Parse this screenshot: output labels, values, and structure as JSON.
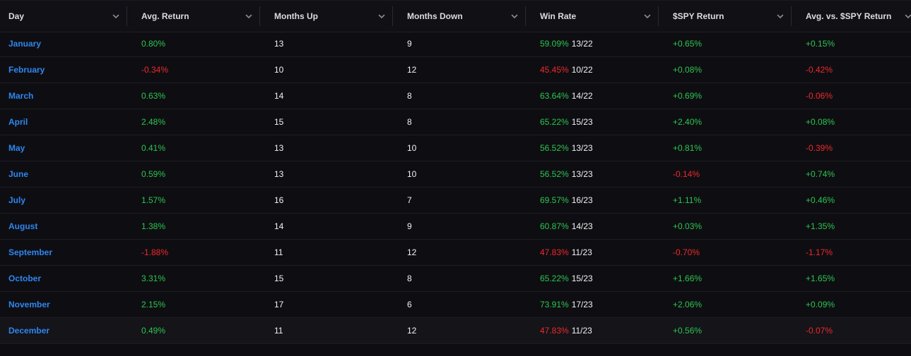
{
  "columns": [
    {
      "key": "day",
      "label": "Day"
    },
    {
      "key": "avg_return",
      "label": "Avg. Return"
    },
    {
      "key": "months_up",
      "label": "Months Up"
    },
    {
      "key": "months_down",
      "label": "Months Down"
    },
    {
      "key": "win_rate",
      "label": "Win Rate"
    },
    {
      "key": "spy_return",
      "label": "$SPY Return"
    },
    {
      "key": "avg_vs_spy",
      "label": "Avg. vs. $SPY Return"
    }
  ],
  "rows": [
    {
      "day": "January",
      "avg_return": "0.80%",
      "avg_return_sign": "pos",
      "months_up": "13",
      "months_down": "9",
      "win_rate": "59.09%",
      "win_rate_sign": "pos",
      "win_fraction": "13/22",
      "spy_return": "+0.65%",
      "spy_return_sign": "pos",
      "avg_vs_spy": "+0.15%",
      "avg_vs_spy_sign": "pos"
    },
    {
      "day": "February",
      "avg_return": "-0.34%",
      "avg_return_sign": "neg",
      "months_up": "10",
      "months_down": "12",
      "win_rate": "45.45%",
      "win_rate_sign": "neg",
      "win_fraction": "10/22",
      "spy_return": "+0.08%",
      "spy_return_sign": "pos",
      "avg_vs_spy": "-0.42%",
      "avg_vs_spy_sign": "neg"
    },
    {
      "day": "March",
      "avg_return": "0.63%",
      "avg_return_sign": "pos",
      "months_up": "14",
      "months_down": "8",
      "win_rate": "63.64%",
      "win_rate_sign": "pos",
      "win_fraction": "14/22",
      "spy_return": "+0.69%",
      "spy_return_sign": "pos",
      "avg_vs_spy": "-0.06%",
      "avg_vs_spy_sign": "neg"
    },
    {
      "day": "April",
      "avg_return": "2.48%",
      "avg_return_sign": "pos",
      "months_up": "15",
      "months_down": "8",
      "win_rate": "65.22%",
      "win_rate_sign": "pos",
      "win_fraction": "15/23",
      "spy_return": "+2.40%",
      "spy_return_sign": "pos",
      "avg_vs_spy": "+0.08%",
      "avg_vs_spy_sign": "pos"
    },
    {
      "day": "May",
      "avg_return": "0.41%",
      "avg_return_sign": "pos",
      "months_up": "13",
      "months_down": "10",
      "win_rate": "56.52%",
      "win_rate_sign": "pos",
      "win_fraction": "13/23",
      "spy_return": "+0.81%",
      "spy_return_sign": "pos",
      "avg_vs_spy": "-0.39%",
      "avg_vs_spy_sign": "neg"
    },
    {
      "day": "June",
      "avg_return": "0.59%",
      "avg_return_sign": "pos",
      "months_up": "13",
      "months_down": "10",
      "win_rate": "56.52%",
      "win_rate_sign": "pos",
      "win_fraction": "13/23",
      "spy_return": "-0.14%",
      "spy_return_sign": "neg",
      "avg_vs_spy": "+0.74%",
      "avg_vs_spy_sign": "pos"
    },
    {
      "day": "July",
      "avg_return": "1.57%",
      "avg_return_sign": "pos",
      "months_up": "16",
      "months_down": "7",
      "win_rate": "69.57%",
      "win_rate_sign": "pos",
      "win_fraction": "16/23",
      "spy_return": "+1.11%",
      "spy_return_sign": "pos",
      "avg_vs_spy": "+0.46%",
      "avg_vs_spy_sign": "pos"
    },
    {
      "day": "August",
      "avg_return": "1.38%",
      "avg_return_sign": "pos",
      "months_up": "14",
      "months_down": "9",
      "win_rate": "60.87%",
      "win_rate_sign": "pos",
      "win_fraction": "14/23",
      "spy_return": "+0.03%",
      "spy_return_sign": "pos",
      "avg_vs_spy": "+1.35%",
      "avg_vs_spy_sign": "pos"
    },
    {
      "day": "September",
      "avg_return": "-1.88%",
      "avg_return_sign": "neg",
      "months_up": "11",
      "months_down": "12",
      "win_rate": "47.83%",
      "win_rate_sign": "neg",
      "win_fraction": "11/23",
      "spy_return": "-0.70%",
      "spy_return_sign": "neg",
      "avg_vs_spy": "-1.17%",
      "avg_vs_spy_sign": "neg"
    },
    {
      "day": "October",
      "avg_return": "3.31%",
      "avg_return_sign": "pos",
      "months_up": "15",
      "months_down": "8",
      "win_rate": "65.22%",
      "win_rate_sign": "pos",
      "win_fraction": "15/23",
      "spy_return": "+1.66%",
      "spy_return_sign": "pos",
      "avg_vs_spy": "+1.65%",
      "avg_vs_spy_sign": "pos"
    },
    {
      "day": "November",
      "avg_return": "2.15%",
      "avg_return_sign": "pos",
      "months_up": "17",
      "months_down": "6",
      "win_rate": "73.91%",
      "win_rate_sign": "pos",
      "win_fraction": "17/23",
      "spy_return": "+2.06%",
      "spy_return_sign": "pos",
      "avg_vs_spy": "+0.09%",
      "avg_vs_spy_sign": "pos"
    },
    {
      "day": "December",
      "avg_return": "0.49%",
      "avg_return_sign": "pos",
      "months_up": "11",
      "months_down": "12",
      "win_rate": "47.83%",
      "win_rate_sign": "neg",
      "win_fraction": "11/23",
      "spy_return": "+0.56%",
      "spy_return_sign": "pos",
      "avg_vs_spy": "-0.07%",
      "avg_vs_spy_sign": "neg"
    }
  ],
  "colors": {
    "positive": "#2cc550",
    "negative": "#f0282c",
    "link": "#2f86f0",
    "text": "#f2f2f4",
    "background": "#0e0e12"
  },
  "icons": {
    "column_menu": "chevron-down-icon"
  }
}
